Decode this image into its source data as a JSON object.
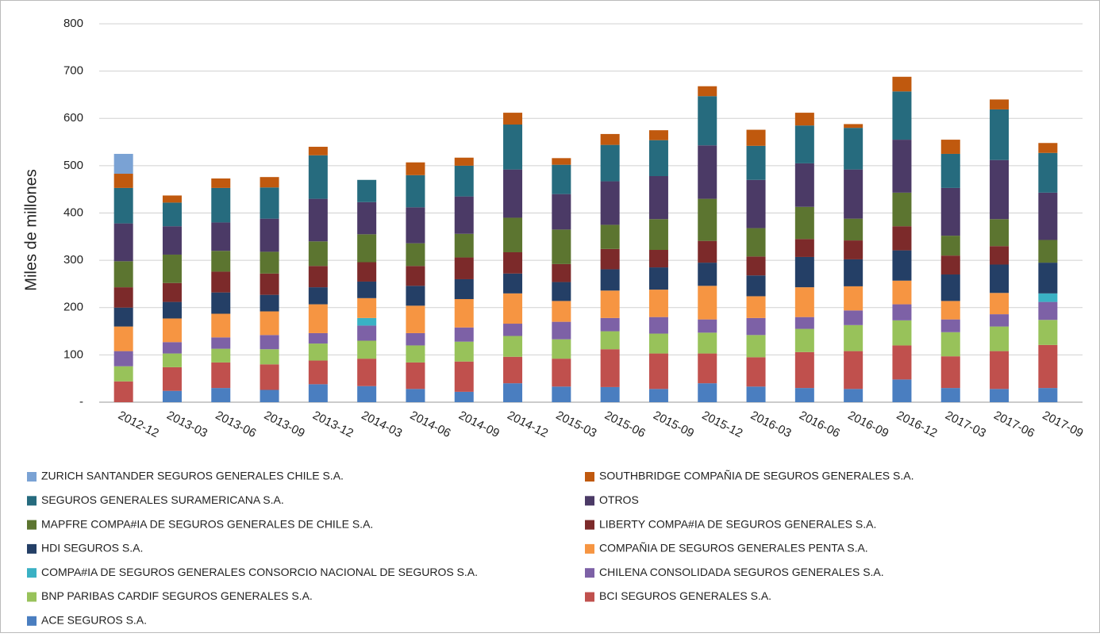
{
  "chart_data": {
    "type": "stacked_bar",
    "y_label": "Miles de millones",
    "categories": [
      "2012-12",
      "2013-03",
      "2013-06",
      "2013-09",
      "2013-12",
      "2014-03",
      "2014-06",
      "2014-09",
      "2014-12",
      "2015-03",
      "2015-06",
      "2015-09",
      "2015-12",
      "2016-03",
      "2016-06",
      "2016-09",
      "2016-12",
      "2017-03",
      "2017-06",
      "2017-09"
    ],
    "ylim": [
      0,
      800
    ],
    "yticks": [
      {
        "value": 0,
        "label": "-"
      },
      100,
      200,
      300,
      400,
      500,
      600,
      700,
      800
    ],
    "grid": true,
    "legend": "bottom",
    "series": [
      {
        "name": "ACE SEGUROS S.A.",
        "color": "#4a7ec0",
        "values": [
          0,
          24,
          30,
          26,
          38,
          34,
          28,
          22,
          40,
          33,
          32,
          28,
          40,
          33,
          30,
          28,
          48,
          30,
          28,
          30
        ]
      },
      {
        "name": "BCI SEGUROS GENERALES S.A.",
        "color": "#c0504d",
        "values": [
          44,
          50,
          54,
          54,
          50,
          58,
          56,
          64,
          56,
          59,
          80,
          75,
          63,
          62,
          76,
          80,
          72,
          67,
          80,
          91
        ]
      },
      {
        "name": "BNP PARIBAS CARDIF SEGUROS GENERALES S.A.",
        "color": "#98c25a",
        "values": [
          32,
          29,
          29,
          32,
          36,
          38,
          36,
          42,
          44,
          41,
          38,
          42,
          44,
          47,
          49,
          55,
          53,
          51,
          52,
          53
        ]
      },
      {
        "name": "CHILENA CONSOLIDADA SEGUROS GENERALES S.A.",
        "color": "#7d61a6",
        "values": [
          32,
          24,
          24,
          30,
          22,
          32,
          26,
          30,
          26,
          37,
          28,
          35,
          28,
          36,
          25,
          31,
          34,
          27,
          26,
          38
        ]
      },
      {
        "name": "COMPA#IA DE SEGUROS GENERALES CONSORCIO NACIONAL DE SEGUROS S.A.",
        "color": "#3ab1c4",
        "values": [
          0,
          0,
          0,
          0,
          0,
          16,
          0,
          0,
          0,
          0,
          0,
          0,
          0,
          0,
          0,
          0,
          0,
          0,
          0,
          18
        ]
      },
      {
        "name": "COMPAÑIA DE SEGUROS GENERALES PENTA S.A.",
        "color": "#f69542",
        "values": [
          52,
          50,
          50,
          50,
          61,
          42,
          58,
          60,
          64,
          44,
          58,
          58,
          71,
          46,
          63,
          51,
          50,
          39,
          45,
          0
        ]
      },
      {
        "name": "HDI SEGUROS S.A.",
        "color": "#243f66",
        "values": [
          40,
          35,
          45,
          35,
          36,
          35,
          42,
          42,
          42,
          40,
          45,
          47,
          49,
          44,
          64,
          57,
          64,
          56,
          60,
          65
        ]
      },
      {
        "name": "LIBERTY COMPA#IA DE SEGUROS GENERALES S.A.",
        "color": "#7c2a2a",
        "values": [
          43,
          40,
          44,
          45,
          45,
          41,
          42,
          46,
          45,
          38,
          43,
          37,
          46,
          40,
          38,
          40,
          51,
          40,
          39,
          0
        ]
      },
      {
        "name": "MAPFRE COMPA#IA DE SEGUROS GENERALES DE CHILE S.A.",
        "color": "#5c7530",
        "values": [
          55,
          60,
          44,
          46,
          52,
          59,
          48,
          50,
          73,
          73,
          51,
          65,
          89,
          60,
          68,
          46,
          71,
          42,
          57,
          48
        ]
      },
      {
        "name": "OTROS",
        "color": "#4b3a66",
        "values": [
          80,
          60,
          60,
          70,
          90,
          68,
          76,
          79,
          102,
          75,
          92,
          91,
          113,
          102,
          92,
          104,
          112,
          101,
          125,
          100
        ]
      },
      {
        "name": "SEGUROS GENERALES SURAMERICANA S.A.",
        "color": "#266b7e",
        "values": [
          75,
          50,
          73,
          66,
          92,
          47,
          68,
          65,
          95,
          62,
          77,
          76,
          104,
          72,
          80,
          88,
          102,
          72,
          107,
          84
        ]
      },
      {
        "name": "SOUTHBRIDGE COMPAÑIA DE SEGUROS GENERALES S.A.",
        "color": "#c0590e",
        "values": [
          30,
          15,
          20,
          22,
          18,
          0,
          27,
          17,
          25,
          14,
          23,
          21,
          21,
          34,
          27,
          8,
          31,
          30,
          21,
          21
        ]
      },
      {
        "name": "ZURICH SANTANDER SEGUROS GENERALES CHILE S.A.",
        "color": "#7aa2d4",
        "values": [
          42,
          0,
          0,
          0,
          0,
          0,
          0,
          0,
          0,
          0,
          0,
          0,
          0,
          0,
          0,
          0,
          0,
          0,
          0,
          0
        ]
      }
    ]
  }
}
